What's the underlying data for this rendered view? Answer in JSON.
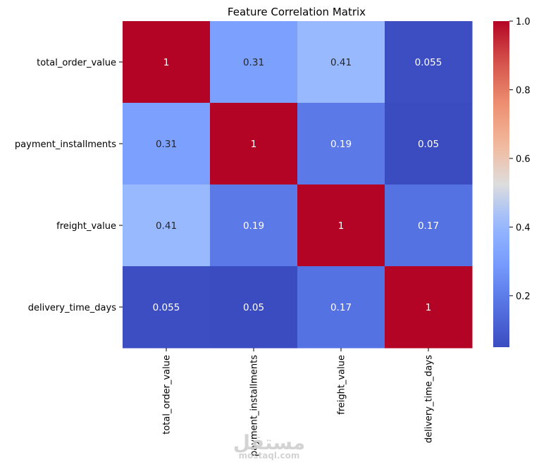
{
  "chart_data": {
    "type": "heatmap",
    "title": "Feature Correlation Matrix",
    "rows": [
      "total_order_value",
      "payment_installments",
      "freight_value",
      "delivery_time_days"
    ],
    "columns": [
      "total_order_value",
      "payment_installments",
      "freight_value",
      "delivery_time_days"
    ],
    "values": [
      [
        1,
        0.31,
        0.41,
        0.055
      ],
      [
        0.31,
        1,
        0.19,
        0.05
      ],
      [
        0.41,
        0.19,
        1,
        0.17
      ],
      [
        0.055,
        0.05,
        0.17,
        1
      ]
    ],
    "cell_labels": [
      [
        "1",
        "0.31",
        "0.41",
        "0.055"
      ],
      [
        "0.31",
        "1",
        "0.19",
        "0.05"
      ],
      [
        "0.41",
        "0.19",
        "1",
        "0.17"
      ],
      [
        "0.055",
        "0.05",
        "0.17",
        "1"
      ]
    ],
    "colormap": "coolwarm",
    "colorbar": {
      "range": [
        0.05,
        1.0
      ],
      "ticks": [
        0.2,
        0.4,
        0.6,
        0.8,
        1.0
      ],
      "tick_labels": [
        "0.2",
        "0.4",
        "0.6",
        "0.8",
        "1.0"
      ]
    }
  },
  "watermark": {
    "arabic": "مستقل",
    "latin": "mostaql.com"
  }
}
